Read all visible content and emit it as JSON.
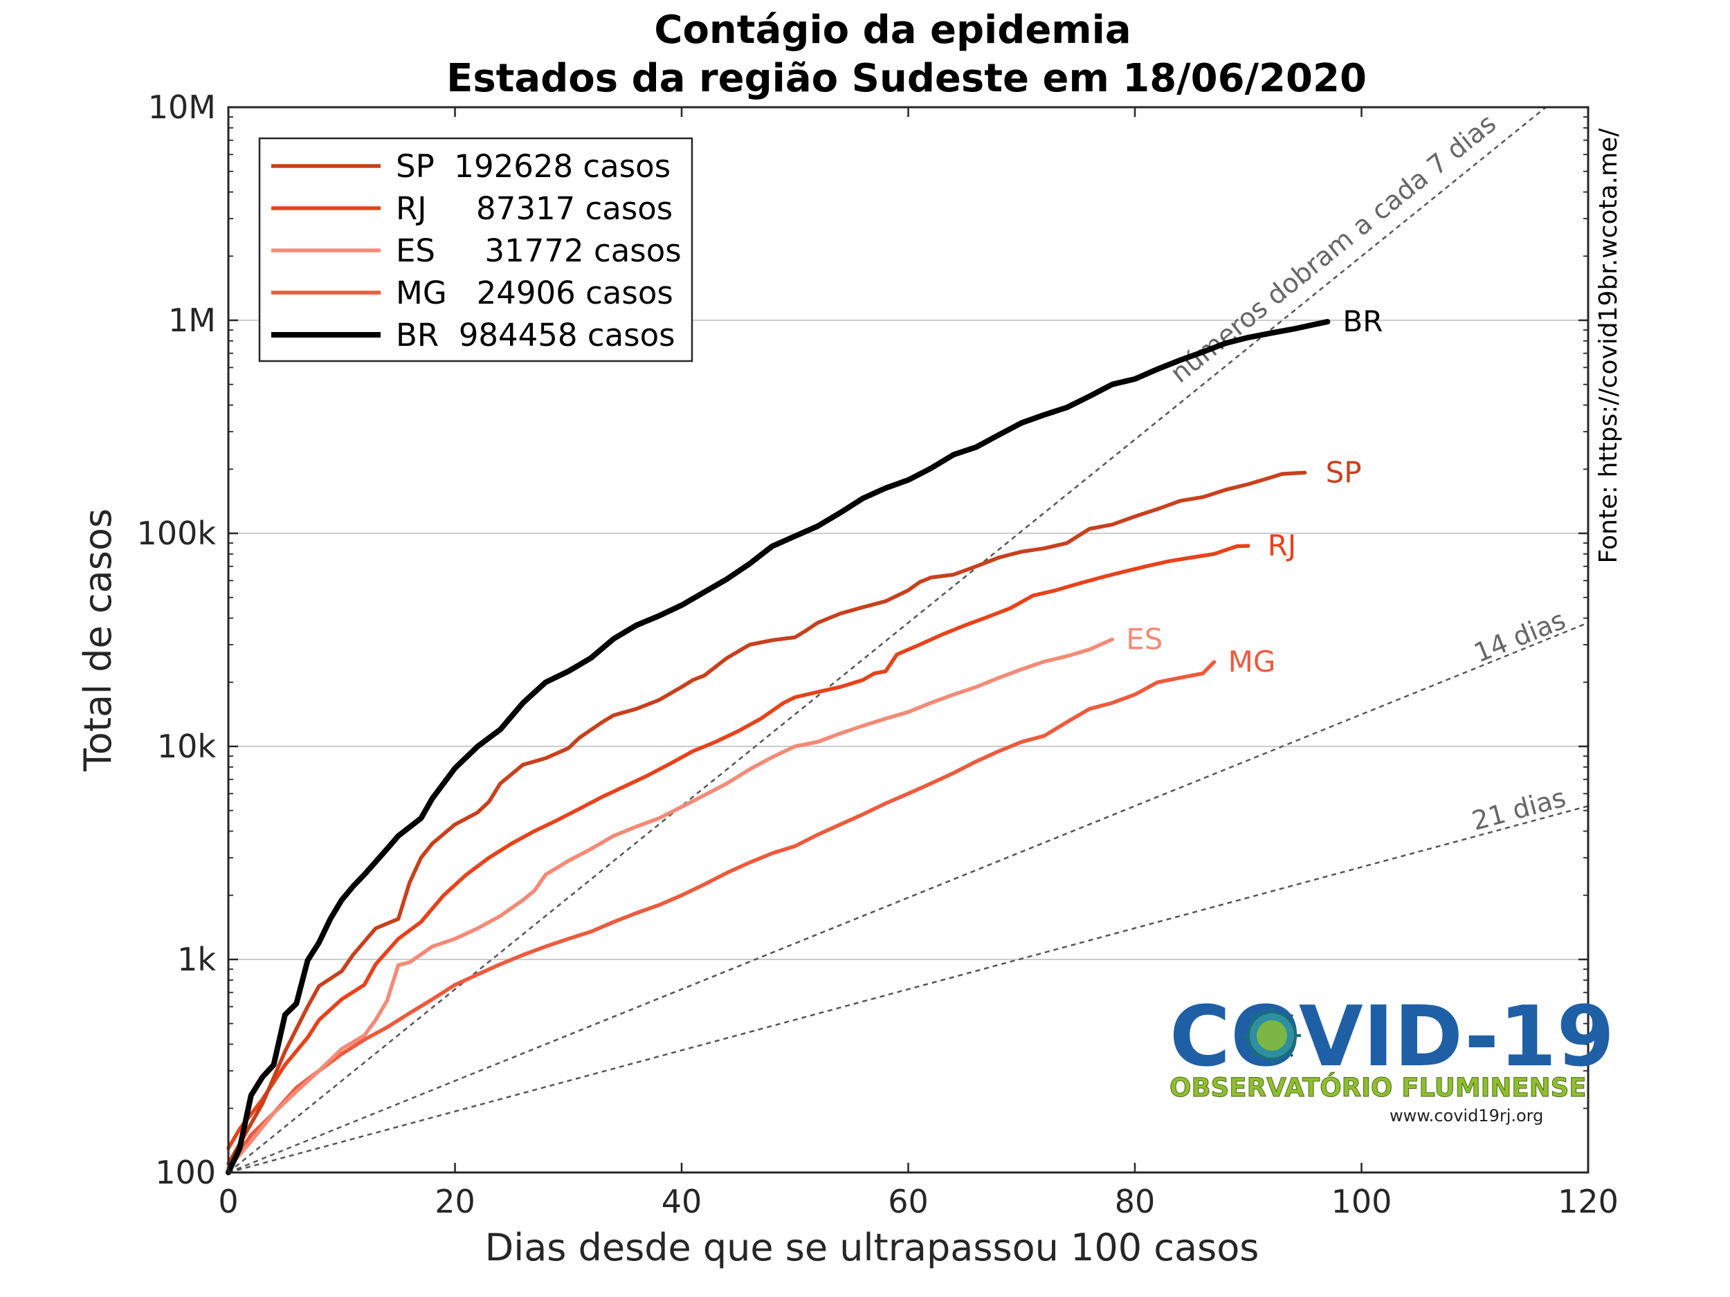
{
  "chart_data": {
    "type": "line",
    "title": "Contágio da epidemia",
    "subtitle": "Estados da região Sudeste em 18/06/2020",
    "xlabel": "Dias desde que se ultrapassou 100 casos",
    "ylabel": "Total de casos",
    "xlim": [
      0,
      120
    ],
    "ylim": [
      100,
      10000000
    ],
    "yscale": "log",
    "grid": "horizontal",
    "legend_position": "top-left",
    "x_ticks": [
      0,
      20,
      40,
      60,
      80,
      100,
      120
    ],
    "x_tick_labels": [
      "0",
      "20",
      "40",
      "60",
      "80",
      "100",
      "120"
    ],
    "y_ticks": [
      100,
      1000,
      10000,
      100000,
      1000000,
      10000000
    ],
    "y_tick_labels": [
      "100",
      "1k",
      "10k",
      "100k",
      "1M",
      "10M"
    ],
    "series": [
      {
        "name": "SP",
        "legend": "SP  192628 casos",
        "color": "#c8401c",
        "points": [
          [
            0,
            110
          ],
          [
            3,
            210
          ],
          [
            5,
            370
          ],
          [
            7,
            600
          ],
          [
            8,
            750
          ],
          [
            10,
            880
          ],
          [
            11,
            1050
          ],
          [
            13,
            1400
          ],
          [
            15,
            1550
          ],
          [
            16,
            2300
          ],
          [
            17,
            3000
          ],
          [
            18,
            3500
          ],
          [
            20,
            4300
          ],
          [
            22,
            4900
          ],
          [
            23,
            5500
          ],
          [
            24,
            6700
          ],
          [
            26,
            8200
          ],
          [
            28,
            8800
          ],
          [
            30,
            9800
          ],
          [
            31,
            11000
          ],
          [
            33,
            13000
          ],
          [
            34,
            14000
          ],
          [
            36,
            15000
          ],
          [
            38,
            16500
          ],
          [
            40,
            19000
          ],
          [
            41,
            20500
          ],
          [
            42,
            21500
          ],
          [
            44,
            26000
          ],
          [
            46,
            30000
          ],
          [
            48,
            31500
          ],
          [
            50,
            32500
          ],
          [
            51,
            35000
          ],
          [
            52,
            38000
          ],
          [
            54,
            42000
          ],
          [
            56,
            45000
          ],
          [
            58,
            48000
          ],
          [
            60,
            54000
          ],
          [
            61,
            59000
          ],
          [
            62,
            62000
          ],
          [
            64,
            64000
          ],
          [
            66,
            70000
          ],
          [
            68,
            77000
          ],
          [
            70,
            82000
          ],
          [
            72,
            85000
          ],
          [
            74,
            90000
          ],
          [
            76,
            105000
          ],
          [
            78,
            110000
          ],
          [
            80,
            120000
          ],
          [
            82,
            130000
          ],
          [
            84,
            142000
          ],
          [
            86,
            148000
          ],
          [
            88,
            160000
          ],
          [
            90,
            170000
          ],
          [
            92,
            183000
          ],
          [
            93,
            190000
          ],
          [
            95,
            192628
          ]
        ],
        "label": "SP"
      },
      {
        "name": "RJ",
        "legend": "RJ     87317 casos",
        "color": "#e8421a",
        "points": [
          [
            0,
            130
          ],
          [
            1,
            160
          ],
          [
            3,
            220
          ],
          [
            5,
            320
          ],
          [
            7,
            430
          ],
          [
            8,
            520
          ],
          [
            10,
            650
          ],
          [
            12,
            760
          ],
          [
            13,
            950
          ],
          [
            15,
            1250
          ],
          [
            17,
            1500
          ],
          [
            19,
            2000
          ],
          [
            21,
            2500
          ],
          [
            23,
            3000
          ],
          [
            25,
            3500
          ],
          [
            27,
            4000
          ],
          [
            29,
            4500
          ],
          [
            31,
            5100
          ],
          [
            33,
            5800
          ],
          [
            35,
            6500
          ],
          [
            37,
            7300
          ],
          [
            39,
            8300
          ],
          [
            41,
            9500
          ],
          [
            43,
            10500
          ],
          [
            45,
            11800
          ],
          [
            47,
            13500
          ],
          [
            49,
            16000
          ],
          [
            50,
            17000
          ],
          [
            52,
            18000
          ],
          [
            54,
            19000
          ],
          [
            56,
            20500
          ],
          [
            57,
            22000
          ],
          [
            58,
            22500
          ],
          [
            59,
            27000
          ],
          [
            61,
            30000
          ],
          [
            63,
            33500
          ],
          [
            65,
            37000
          ],
          [
            67,
            40500
          ],
          [
            69,
            44500
          ],
          [
            71,
            51000
          ],
          [
            73,
            54000
          ],
          [
            75,
            58000
          ],
          [
            77,
            62000
          ],
          [
            79,
            66000
          ],
          [
            81,
            70000
          ],
          [
            83,
            74000
          ],
          [
            85,
            77000
          ],
          [
            87,
            80000
          ],
          [
            89,
            87000
          ],
          [
            90,
            87317
          ]
        ],
        "label": "RJ"
      },
      {
        "name": "ES",
        "legend": "ES     31772 casos",
        "color": "#f58a76",
        "points": [
          [
            0,
            105
          ],
          [
            2,
            140
          ],
          [
            4,
            190
          ],
          [
            6,
            240
          ],
          [
            8,
            300
          ],
          [
            10,
            380
          ],
          [
            12,
            440
          ],
          [
            13,
            520
          ],
          [
            14,
            640
          ],
          [
            15,
            940
          ],
          [
            16,
            970
          ],
          [
            18,
            1150
          ],
          [
            20,
            1250
          ],
          [
            22,
            1400
          ],
          [
            24,
            1600
          ],
          [
            26,
            1900
          ],
          [
            27,
            2100
          ],
          [
            28,
            2500
          ],
          [
            30,
            2900
          ],
          [
            32,
            3300
          ],
          [
            34,
            3800
          ],
          [
            36,
            4200
          ],
          [
            38,
            4600
          ],
          [
            40,
            5200
          ],
          [
            42,
            5900
          ],
          [
            44,
            6700
          ],
          [
            46,
            7800
          ],
          [
            48,
            8900
          ],
          [
            50,
            10000
          ],
          [
            52,
            10500
          ],
          [
            54,
            11500
          ],
          [
            56,
            12500
          ],
          [
            58,
            13500
          ],
          [
            60,
            14500
          ],
          [
            62,
            16000
          ],
          [
            64,
            17500
          ],
          [
            66,
            19000
          ],
          [
            68,
            21000
          ],
          [
            70,
            23000
          ],
          [
            72,
            25000
          ],
          [
            74,
            26500
          ],
          [
            76,
            28500
          ],
          [
            78,
            31772
          ]
        ],
        "label": "ES"
      },
      {
        "name": "MG",
        "legend": "MG   24906 casos",
        "color": "#ee5a3c",
        "points": [
          [
            0,
            105
          ],
          [
            2,
            150
          ],
          [
            4,
            190
          ],
          [
            6,
            250
          ],
          [
            8,
            300
          ],
          [
            10,
            360
          ],
          [
            12,
            420
          ],
          [
            14,
            480
          ],
          [
            16,
            560
          ],
          [
            18,
            650
          ],
          [
            20,
            760
          ],
          [
            22,
            850
          ],
          [
            24,
            950
          ],
          [
            26,
            1050
          ],
          [
            28,
            1150
          ],
          [
            30,
            1250
          ],
          [
            32,
            1350
          ],
          [
            34,
            1500
          ],
          [
            36,
            1650
          ],
          [
            38,
            1800
          ],
          [
            40,
            2000
          ],
          [
            42,
            2250
          ],
          [
            44,
            2550
          ],
          [
            46,
            2850
          ],
          [
            48,
            3150
          ],
          [
            50,
            3400
          ],
          [
            52,
            3850
          ],
          [
            54,
            4300
          ],
          [
            56,
            4800
          ],
          [
            58,
            5400
          ],
          [
            60,
            6000
          ],
          [
            62,
            6700
          ],
          [
            64,
            7500
          ],
          [
            66,
            8500
          ],
          [
            68,
            9500
          ],
          [
            70,
            10500
          ],
          [
            72,
            11200
          ],
          [
            74,
            13000
          ],
          [
            76,
            15000
          ],
          [
            78,
            16000
          ],
          [
            80,
            17500
          ],
          [
            82,
            20000
          ],
          [
            84,
            21000
          ],
          [
            86,
            22000
          ],
          [
            87,
            24906
          ]
        ],
        "label": "MG"
      },
      {
        "name": "BR",
        "legend": "BR  984458 casos",
        "color": "#000000",
        "points": [
          [
            0,
            100
          ],
          [
            1,
            130
          ],
          [
            2,
            230
          ],
          [
            3,
            280
          ],
          [
            4,
            320
          ],
          [
            5,
            550
          ],
          [
            6,
            620
          ],
          [
            7,
            990
          ],
          [
            8,
            1200
          ],
          [
            9,
            1550
          ],
          [
            10,
            1900
          ],
          [
            11,
            2200
          ],
          [
            12,
            2500
          ],
          [
            14,
            3300
          ],
          [
            15,
            3800
          ],
          [
            17,
            4600
          ],
          [
            18,
            5700
          ],
          [
            20,
            7900
          ],
          [
            22,
            10000
          ],
          [
            24,
            12000
          ],
          [
            26,
            16000
          ],
          [
            28,
            20000
          ],
          [
            30,
            22500
          ],
          [
            32,
            26000
          ],
          [
            34,
            32000
          ],
          [
            36,
            37000
          ],
          [
            38,
            41000
          ],
          [
            40,
            46000
          ],
          [
            42,
            53000
          ],
          [
            44,
            61000
          ],
          [
            46,
            72000
          ],
          [
            48,
            87000
          ],
          [
            50,
            97000
          ],
          [
            52,
            108000
          ],
          [
            54,
            125000
          ],
          [
            56,
            146000
          ],
          [
            58,
            163000
          ],
          [
            60,
            178000
          ],
          [
            62,
            202000
          ],
          [
            64,
            234000
          ],
          [
            66,
            254000
          ],
          [
            68,
            290000
          ],
          [
            70,
            330000
          ],
          [
            72,
            360000
          ],
          [
            74,
            390000
          ],
          [
            76,
            440000
          ],
          [
            78,
            500000
          ],
          [
            80,
            530000
          ],
          [
            82,
            590000
          ],
          [
            84,
            650000
          ],
          [
            86,
            710000
          ],
          [
            88,
            780000
          ],
          [
            90,
            830000
          ],
          [
            92,
            870000
          ],
          [
            94,
            910000
          ],
          [
            96,
            960000
          ],
          [
            97,
            984458
          ]
        ],
        "label": "BR"
      }
    ],
    "reference_lines": [
      {
        "label": "números dobram a cada 7 dias",
        "doubling_days": 7
      },
      {
        "label": "14 dias",
        "doubling_days": 14
      },
      {
        "label": "21 dias",
        "doubling_days": 21
      }
    ],
    "source_text": "Fonte: https://covid19br.wcota.me/",
    "logo": {
      "title": "COVID-19",
      "subtitle": "OBSERVATÓRIO FLUMINENSE",
      "url": "www.covid19rj.org"
    }
  }
}
